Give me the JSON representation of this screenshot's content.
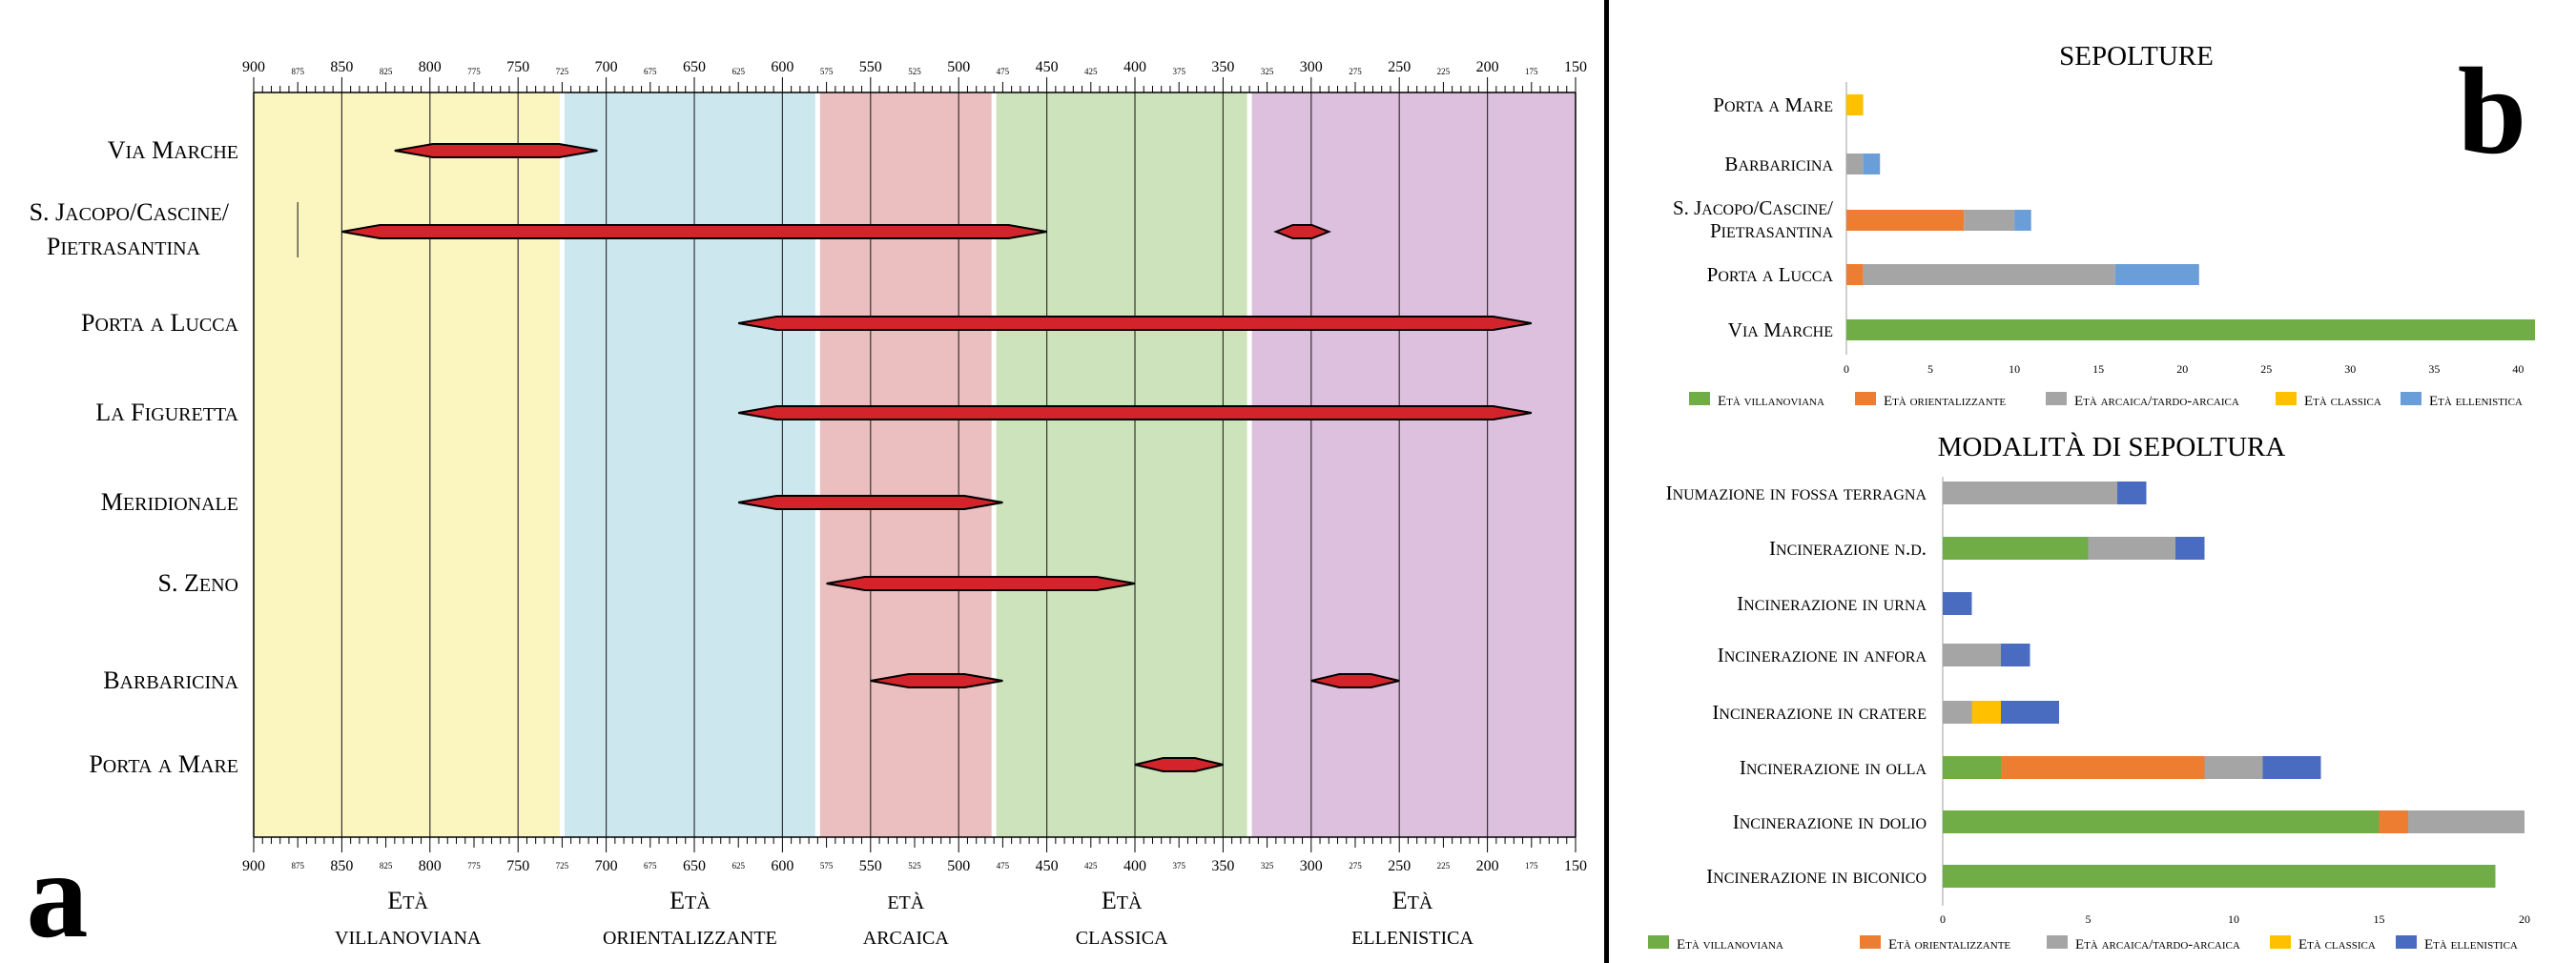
{
  "panel_letters": {
    "a": "a",
    "b": "b"
  },
  "colors": {
    "villanoviana_band": "#fbf5bf",
    "orientalizzante_band": "#cde7ef",
    "arcaica_band": "#ebbfbf",
    "classica_band": "#cde3bb",
    "ellenistica_band": "#ddc0de",
    "range_bar": "#d3232b",
    "divider": "#000000",
    "villanoviana": "#70ad47",
    "orientalizzante": "#ed7d31",
    "arcaica": "#a5a5a5",
    "classica": "#ffc000",
    "ellenistica_b1": "#6a9ed8",
    "ellenistica_b2": "#4a6cc0"
  },
  "chart_data": [
    {
      "type": "range",
      "title": "",
      "x_axis": {
        "reversed": true,
        "min": 150,
        "max": 900,
        "major_ticks": [
          900,
          850,
          800,
          750,
          700,
          650,
          600,
          550,
          500,
          450,
          400,
          350,
          300,
          250,
          200,
          150
        ],
        "minor_ticks": [
          875,
          825,
          775,
          725,
          675,
          625,
          575,
          525,
          475,
          425,
          375,
          325,
          275,
          225,
          175
        ]
      },
      "grid": true,
      "periods": [
        {
          "line1": "Età",
          "line2": "villanoviana",
          "from": 900,
          "to": 725,
          "color_key": "villanoviana_band"
        },
        {
          "line1": "Età",
          "line2": "orientalizzante",
          "from": 725,
          "to": 580,
          "color_key": "orientalizzante_band"
        },
        {
          "line1": "età",
          "line2": "arcaica",
          "from": 580,
          "to": 480,
          "color_key": "arcaica_band"
        },
        {
          "line1": "Età",
          "line2": "classica",
          "from": 480,
          "to": 335,
          "color_key": "classica_band"
        },
        {
          "line1": "Età",
          "line2": "ellenistica",
          "from": 335,
          "to": 150,
          "color_key": "ellenistica_band"
        }
      ],
      "sites": [
        {
          "name": [
            "Via Marche"
          ],
          "ranges": [
            [
              820,
              705
            ]
          ]
        },
        {
          "name": [
            "S. Jacopo/Cascine/",
            "Pietrasantina"
          ],
          "ranges": [
            [
              850,
              450
            ],
            [
              320,
              290
            ]
          ]
        },
        {
          "name": [
            "Porta a Lucca"
          ],
          "ranges": [
            [
              625,
              175
            ]
          ]
        },
        {
          "name": [
            "La Figuretta"
          ],
          "ranges": [
            [
              625,
              175
            ]
          ]
        },
        {
          "name": [
            "Meridionale"
          ],
          "ranges": [
            [
              625,
              475
            ]
          ]
        },
        {
          "name": [
            "S. Zeno"
          ],
          "ranges": [
            [
              575,
              400
            ]
          ]
        },
        {
          "name": [
            "Barbaricina"
          ],
          "ranges": [
            [
              550,
              475
            ],
            [
              300,
              250
            ]
          ]
        },
        {
          "name": [
            "Porta a Mare"
          ],
          "ranges": [
            [
              400,
              350
            ]
          ]
        }
      ]
    },
    {
      "type": "bar",
      "orientation": "horizontal",
      "stacked": true,
      "title": "SEPOLTURE",
      "categories": [
        "Porta a Mare",
        "Barbaricina",
        "S. Jacopo/Cascine/\nPietrasantina",
        "Porta a Lucca",
        "Via Marche"
      ],
      "xlim": [
        0,
        41
      ],
      "xticks": [
        0,
        5,
        10,
        15,
        20,
        25,
        30,
        35,
        40
      ],
      "grid": false,
      "legend_position": "bottom",
      "series": [
        {
          "name": "Età villanoviana",
          "color_key": "villanoviana",
          "values": [
            0,
            0,
            0,
            0,
            41
          ]
        },
        {
          "name": "Età orientalizzante",
          "color_key": "orientalizzante",
          "values": [
            0,
            0,
            7,
            1,
            0
          ]
        },
        {
          "name": "Età arcaica/tardo-arcaica",
          "color_key": "arcaica",
          "values": [
            0,
            1,
            3,
            15,
            0
          ]
        },
        {
          "name": "Età classica",
          "color_key": "classica",
          "values": [
            1,
            0,
            0,
            0,
            0
          ]
        },
        {
          "name": "Età ellenistica",
          "color_key": "ellenistica_b1",
          "values": [
            0,
            1,
            1,
            5,
            0
          ]
        }
      ]
    },
    {
      "type": "bar",
      "orientation": "horizontal",
      "stacked": true,
      "title": "MODALITÀ DI SEPOLTURA",
      "categories": [
        "Inumazione in fossa terragna",
        "Incinerazione n.d.",
        "Incinerazione in urna",
        "Incinerazione in anfora",
        "Incinerazione in cratere",
        "Incinerazione in olla",
        "Incinerazione in dolio",
        "Incinerazione in biconico"
      ],
      "xlim": [
        0,
        20
      ],
      "xticks": [
        0,
        5,
        10,
        15,
        20
      ],
      "grid": false,
      "legend_position": "bottom",
      "series": [
        {
          "name": "Età villanoviana",
          "color_key": "villanoviana",
          "values": [
            0,
            5,
            0,
            0,
            0,
            2,
            15,
            19
          ]
        },
        {
          "name": "Età orientalizzante",
          "color_key": "orientalizzante",
          "values": [
            0,
            0,
            0,
            0,
            0,
            7,
            1,
            0
          ]
        },
        {
          "name": "Età arcaica/tardo-arcaica",
          "color_key": "arcaica",
          "values": [
            6,
            3,
            0,
            2,
            1,
            2,
            4,
            0
          ]
        },
        {
          "name": "Età classica",
          "color_key": "classica",
          "values": [
            0,
            0,
            0,
            0,
            1,
            0,
            0,
            0
          ]
        },
        {
          "name": "Età ellenistica",
          "color_key": "ellenistica_b2",
          "values": [
            1,
            1,
            1,
            1,
            2,
            2,
            0,
            0
          ]
        }
      ]
    }
  ]
}
